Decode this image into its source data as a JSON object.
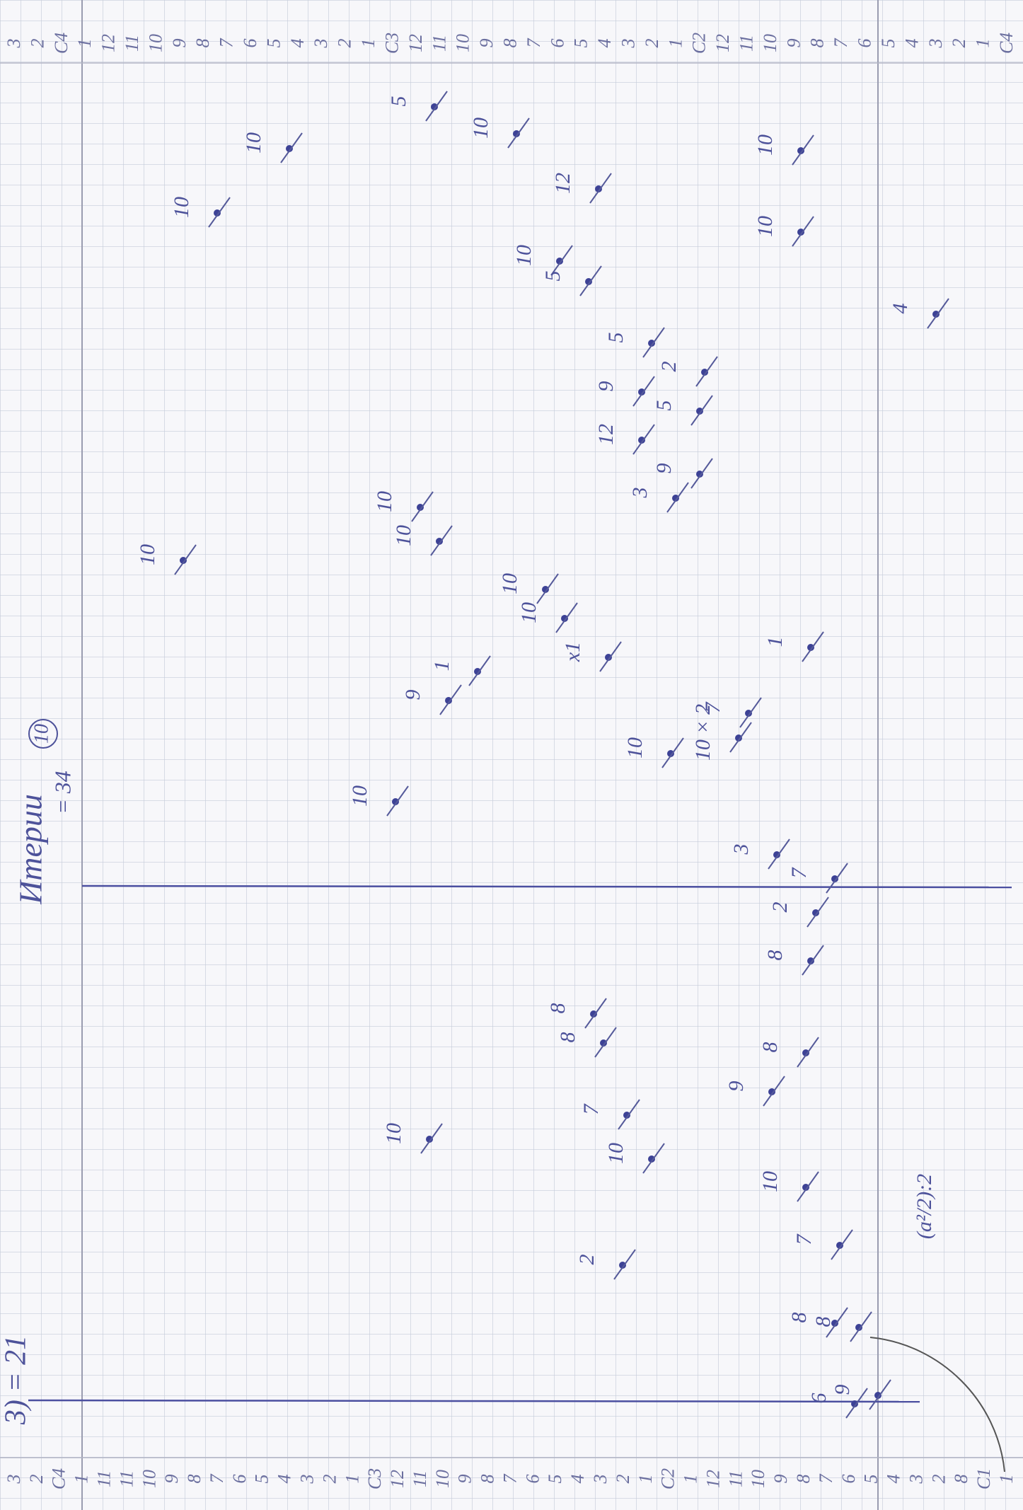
{
  "header": {
    "title": "Итерии",
    "count": "= 34",
    "circled": "10",
    "left_note": "3) = 21",
    "formula": "(a²/2):2"
  },
  "scale": {
    "top": [
      "3",
      "2",
      "C4",
      "1",
      "12",
      "11",
      "10",
      "9",
      "8",
      "7",
      "6",
      "5",
      "4",
      "3",
      "2",
      "1",
      "C3",
      "12",
      "11",
      "10",
      "9",
      "8",
      "7",
      "6",
      "5",
      "4",
      "3",
      "2",
      "1",
      "C2",
      "12",
      "11",
      "10",
      "9",
      "8",
      "7",
      "6",
      "5",
      "4",
      "3",
      "2",
      "1",
      "C4"
    ],
    "bottom": [
      "3",
      "2",
      "C4",
      "1",
      "11",
      "11",
      "10",
      "9",
      "8",
      "7",
      "6",
      "5",
      "4",
      "3",
      "2",
      "1",
      "C3",
      "12",
      "11",
      "10",
      "9",
      "8",
      "7",
      "6",
      "5",
      "4",
      "3",
      "2",
      "1",
      "C2",
      "1",
      "12",
      "11",
      "10",
      "9",
      "8",
      "7",
      "6",
      "5",
      "4",
      "3",
      "2",
      "8",
      "C1",
      "1"
    ]
  },
  "notes": [
    "10",
    "10",
    "5",
    "10",
    "12",
    "10",
    "10",
    "10",
    "5",
    "4",
    "5",
    "12",
    "9",
    "3",
    "9",
    "5",
    "2",
    "10",
    "10",
    "10",
    "10",
    "10",
    "x1",
    "9",
    "1",
    "1",
    "10",
    "10 × 2",
    "7",
    "10",
    "3",
    "7",
    "2",
    "8",
    "8",
    "8",
    "7",
    "10",
    "10",
    "8",
    "9",
    "10",
    "7",
    "2",
    "8",
    "8",
    "6",
    "9"
  ]
}
